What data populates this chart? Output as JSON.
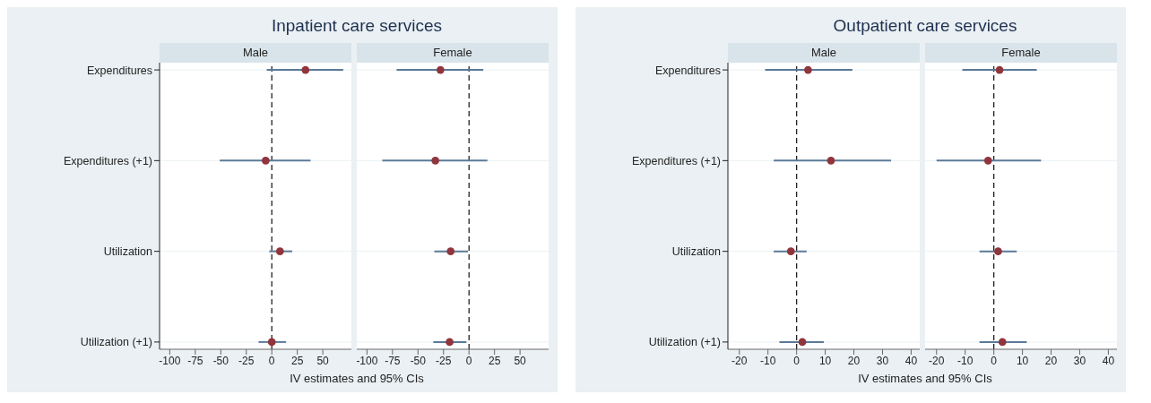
{
  "chart_data": [
    {
      "type": "scatter",
      "orientation": "horizontal",
      "title": "Inpatient care services",
      "subtitle": "Male",
      "xlabel": "IV estimates and 95% CIs",
      "categories": [
        "Expenditures",
        "Expenditures (+1)",
        "Utilization",
        "Utilization (+1)"
      ],
      "series": [
        {
          "color": "#90353b",
          "values": [
            33,
            -6,
            8,
            0
          ],
          "errors": [
            [
              -5,
              70
            ],
            [
              -51,
              38
            ],
            [
              -2.5,
              20
            ],
            [
              -13,
              14
            ]
          ]
        }
      ],
      "xlim": [
        -110,
        78
      ],
      "xticks": [
        -100,
        -75,
        -50,
        -25,
        0,
        25,
        50
      ],
      "ref_lines": [
        {
          "axis": "x",
          "value": 0,
          "line_style": "dashed"
        }
      ],
      "grid": "y",
      "marker": "circle"
    },
    {
      "type": "scatter",
      "orientation": "horizontal",
      "subtitle": "Female",
      "series": [
        {
          "color": "#90353b",
          "values": [
            -28,
            -33,
            -18,
            -19
          ],
          "errors": [
            [
              -71,
              14
            ],
            [
              -85,
              18
            ],
            [
              -34,
              -1
            ],
            [
              -35,
              -2.5
            ]
          ]
        }
      ],
      "xlim": [
        -110,
        78
      ],
      "xticks": [
        -100,
        -75,
        -50,
        -25,
        0,
        25,
        50
      ],
      "ref_lines": [
        {
          "axis": "x",
          "value": 0,
          "line_style": "dashed"
        }
      ],
      "grid": "y",
      "marker": "circle",
      "tick_labels": "x"
    },
    {
      "type": "scatter",
      "orientation": "horizontal",
      "title": "Outpatient care services",
      "subtitle": "Male",
      "xlabel": "IV estimates and 95% CIs",
      "categories": [
        "Expenditures",
        "Expenditures (+1)",
        "Utilization",
        "Utilization (+1)"
      ],
      "series": [
        {
          "color": "#90353b",
          "values": [
            4,
            12,
            -2,
            2
          ],
          "errors": [
            [
              -11,
              19.5
            ],
            [
              -8,
              33
            ],
            [
              -8,
              3.5
            ],
            [
              -6,
              9.5
            ]
          ]
        }
      ],
      "xlim": [
        -24,
        43
      ],
      "xticks": [
        -20,
        -10,
        0,
        10,
        20,
        30,
        40
      ],
      "ref_lines": [
        {
          "axis": "x",
          "value": 0,
          "line_style": "dashed"
        }
      ],
      "grid": "y",
      "marker": "circle"
    },
    {
      "type": "scatter",
      "orientation": "horizontal",
      "subtitle": "Female",
      "series": [
        {
          "color": "#90353b",
          "values": [
            2,
            -2,
            1.5,
            3
          ],
          "errors": [
            [
              -11,
              15
            ],
            [
              -20,
              16.5
            ],
            [
              -5,
              8
            ],
            [
              -5,
              11.5
            ]
          ]
        }
      ],
      "xlim": [
        -24,
        43
      ],
      "xticks": [
        -20,
        -10,
        0,
        10,
        20,
        30,
        40
      ],
      "ref_lines": [
        {
          "axis": "x",
          "value": 0,
          "line_style": "dashed"
        }
      ],
      "grid": "y",
      "marker": "circle",
      "tick_labels": "x"
    }
  ]
}
